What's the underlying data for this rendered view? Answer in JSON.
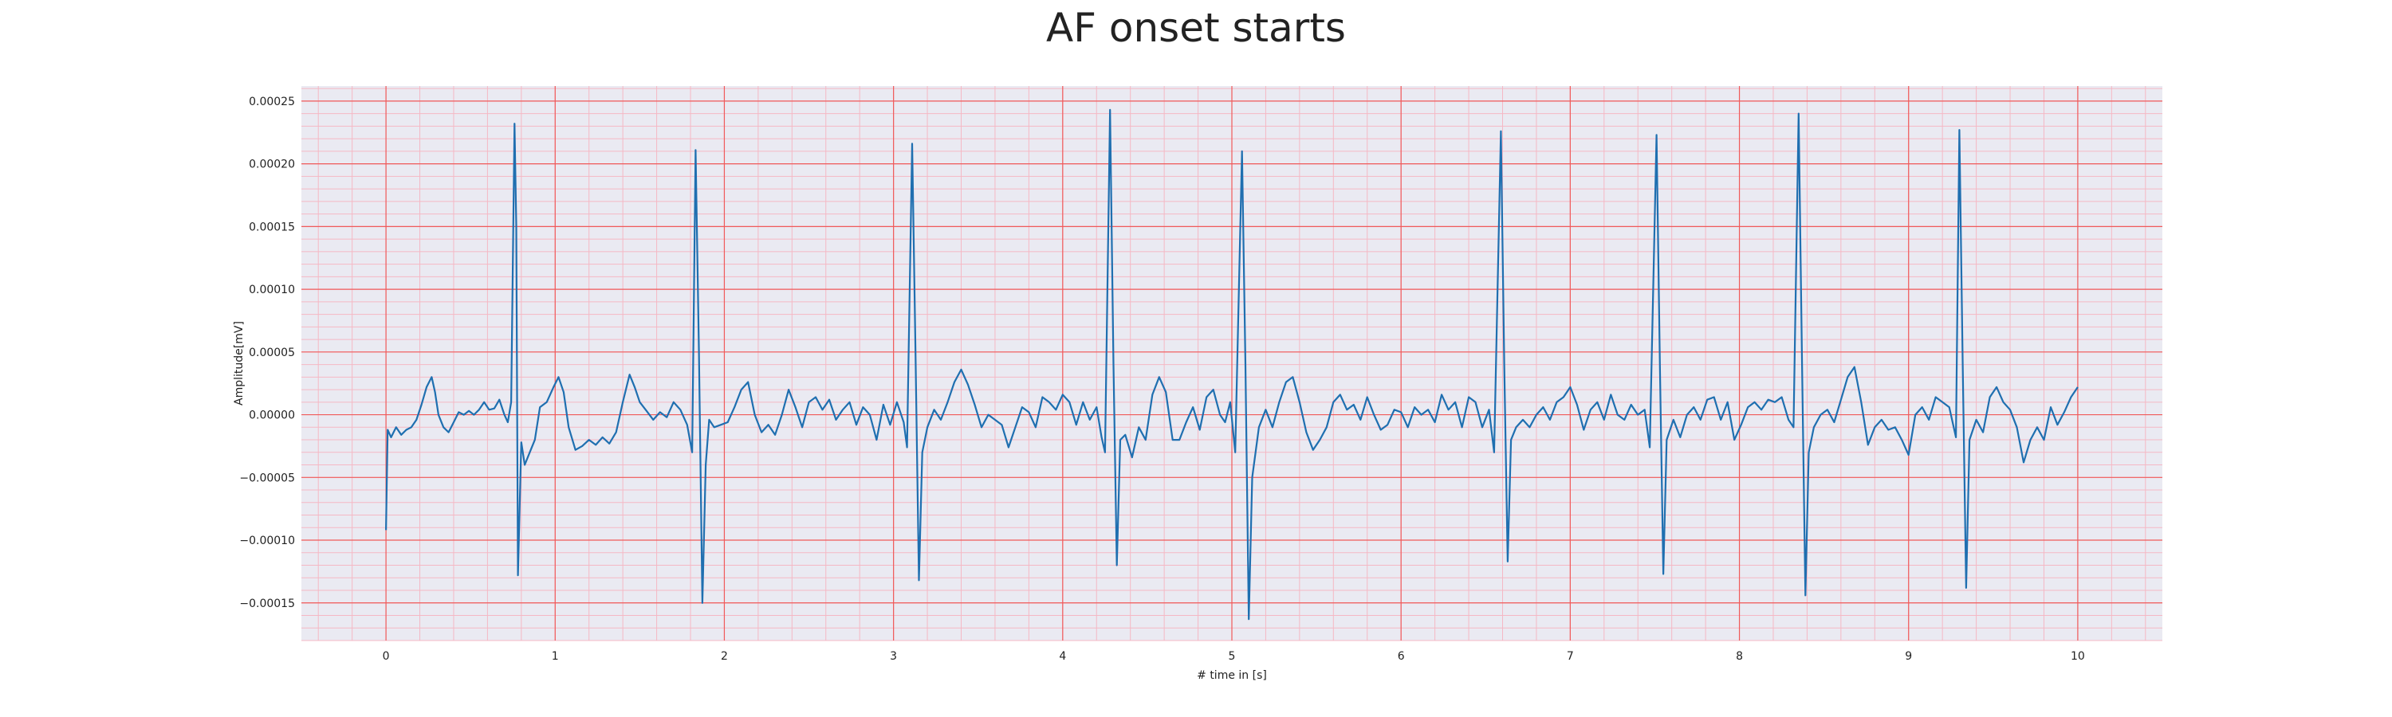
{
  "chart_data": {
    "type": "line",
    "title": "AF onset starts",
    "xlabel": "# time in [s]",
    "ylabel": "Amplitude[mV]",
    "xlim": [
      -0.5,
      10.5
    ],
    "ylim": [
      -0.00018,
      0.000262
    ],
    "x_ticks": [
      0,
      1,
      2,
      3,
      4,
      5,
      6,
      7,
      8,
      9,
      10
    ],
    "x_tick_labels": [
      "0",
      "1",
      "2",
      "3",
      "4",
      "5",
      "6",
      "7",
      "8",
      "9",
      "10"
    ],
    "y_ticks": [
      -0.00015,
      -0.0001,
      -5e-05,
      0,
      5e-05,
      0.0001,
      0.00015,
      0.0002,
      0.00025
    ],
    "y_tick_labels": [
      "−0.00015",
      "−0.00010",
      "−0.00005",
      "0.00000",
      "0.00005",
      "0.00010",
      "0.00015",
      "0.00020",
      "0.00025"
    ],
    "grid": true,
    "minor_grid": true,
    "colors": {
      "line": "#1f6fb0",
      "major_grid": "#f05a5a",
      "minor_grid": "#f5b8c4",
      "background": "#eaeaf2"
    },
    "series": [
      {
        "values": [
          [
            0.0,
            -9.2e-05
          ],
          [
            0.01,
            -1.2e-05
          ],
          [
            0.03,
            -1.8e-05
          ],
          [
            0.06,
            -1e-05
          ],
          [
            0.09,
            -1.6e-05
          ],
          [
            0.12,
            -1.2e-05
          ],
          [
            0.15,
            -1e-05
          ],
          [
            0.18,
            -4e-06
          ],
          [
            0.21,
            8e-06
          ],
          [
            0.24,
            2.2e-05
          ],
          [
            0.27,
            3e-05
          ],
          [
            0.29,
            1.8e-05
          ],
          [
            0.31,
            0.0
          ],
          [
            0.34,
            -1e-05
          ],
          [
            0.37,
            -1.4e-05
          ],
          [
            0.4,
            -6e-06
          ],
          [
            0.43,
            2e-06
          ],
          [
            0.46,
            0.0
          ],
          [
            0.49,
            3e-06
          ],
          [
            0.52,
            0.0
          ],
          [
            0.55,
            4e-06
          ],
          [
            0.58,
            1e-05
          ],
          [
            0.61,
            4e-06
          ],
          [
            0.64,
            5e-06
          ],
          [
            0.67,
            1.2e-05
          ],
          [
            0.7,
            0.0
          ],
          [
            0.72,
            -6e-06
          ],
          [
            0.74,
            1e-05
          ],
          [
            0.76,
            0.000232
          ],
          [
            0.77,
            0.00015
          ],
          [
            0.78,
            -0.000128
          ],
          [
            0.8,
            -2.2e-05
          ],
          [
            0.82,
            -4e-05
          ],
          [
            0.85,
            -3e-05
          ],
          [
            0.88,
            -2e-05
          ],
          [
            0.91,
            6e-06
          ],
          [
            0.95,
            1e-05
          ],
          [
            0.99,
            2.2e-05
          ],
          [
            1.02,
            3e-05
          ],
          [
            1.05,
            1.8e-05
          ],
          [
            1.08,
            -1e-05
          ],
          [
            1.12,
            -2.8e-05
          ],
          [
            1.16,
            -2.5e-05
          ],
          [
            1.2,
            -2e-05
          ],
          [
            1.24,
            -2.4e-05
          ],
          [
            1.28,
            -1.8e-05
          ],
          [
            1.32,
            -2.3e-05
          ],
          [
            1.36,
            -1.4e-05
          ],
          [
            1.4,
            1e-05
          ],
          [
            1.44,
            3.2e-05
          ],
          [
            1.47,
            2.2e-05
          ],
          [
            1.5,
            1e-05
          ],
          [
            1.54,
            3e-06
          ],
          [
            1.58,
            -4e-06
          ],
          [
            1.62,
            2e-06
          ],
          [
            1.66,
            -2e-06
          ],
          [
            1.7,
            1e-05
          ],
          [
            1.74,
            4e-06
          ],
          [
            1.78,
            -8e-06
          ],
          [
            1.81,
            -3e-05
          ],
          [
            1.83,
            0.000211
          ],
          [
            1.85,
            5e-05
          ],
          [
            1.87,
            -0.00015
          ],
          [
            1.89,
            -4e-05
          ],
          [
            1.91,
            -4e-06
          ],
          [
            1.94,
            -1e-05
          ],
          [
            1.98,
            -8e-06
          ],
          [
            2.02,
            -6e-06
          ],
          [
            2.06,
            6e-06
          ],
          [
            2.1,
            2e-05
          ],
          [
            2.14,
            2.6e-05
          ],
          [
            2.18,
            0.0
          ],
          [
            2.22,
            -1.4e-05
          ],
          [
            2.26,
            -8e-06
          ],
          [
            2.3,
            -1.6e-05
          ],
          [
            2.34,
            0.0
          ],
          [
            2.38,
            2e-05
          ],
          [
            2.42,
            6e-06
          ],
          [
            2.46,
            -1e-05
          ],
          [
            2.5,
            1e-05
          ],
          [
            2.54,
            1.4e-05
          ],
          [
            2.58,
            4e-06
          ],
          [
            2.62,
            1.2e-05
          ],
          [
            2.66,
            -4e-06
          ],
          [
            2.7,
            4e-06
          ],
          [
            2.74,
            1e-05
          ],
          [
            2.78,
            -8e-06
          ],
          [
            2.82,
            6e-06
          ],
          [
            2.86,
            0.0
          ],
          [
            2.9,
            -2e-05
          ],
          [
            2.94,
            8e-06
          ],
          [
            2.98,
            -8e-06
          ],
          [
            3.02,
            1e-05
          ],
          [
            3.06,
            -6e-06
          ],
          [
            3.08,
            -2.6e-05
          ],
          [
            3.11,
            0.000216
          ],
          [
            3.13,
            5e-05
          ],
          [
            3.15,
            -0.000132
          ],
          [
            3.17,
            -3e-05
          ],
          [
            3.2,
            -1e-05
          ],
          [
            3.24,
            4e-06
          ],
          [
            3.28,
            -4e-06
          ],
          [
            3.32,
            1e-05
          ],
          [
            3.36,
            2.6e-05
          ],
          [
            3.4,
            3.6e-05
          ],
          [
            3.44,
            2.4e-05
          ],
          [
            3.48,
            8e-06
          ],
          [
            3.52,
            -1e-05
          ],
          [
            3.56,
            0.0
          ],
          [
            3.6,
            -4e-06
          ],
          [
            3.64,
            -8e-06
          ],
          [
            3.68,
            -2.6e-05
          ],
          [
            3.72,
            -1e-05
          ],
          [
            3.76,
            6e-06
          ],
          [
            3.8,
            2e-06
          ],
          [
            3.84,
            -1e-05
          ],
          [
            3.88,
            1.4e-05
          ],
          [
            3.92,
            1e-05
          ],
          [
            3.96,
            4e-06
          ],
          [
            4.0,
            1.6e-05
          ],
          [
            4.04,
            1e-05
          ],
          [
            4.08,
            -8e-06
          ],
          [
            4.12,
            1e-05
          ],
          [
            4.16,
            -4e-06
          ],
          [
            4.2,
            6e-06
          ],
          [
            4.23,
            -1.8e-05
          ],
          [
            4.25,
            -3e-05
          ],
          [
            4.28,
            0.000243
          ],
          [
            4.3,
            4e-05
          ],
          [
            4.32,
            -0.00012
          ],
          [
            4.34,
            -2e-05
          ],
          [
            4.37,
            -1.6e-05
          ],
          [
            4.41,
            -3.4e-05
          ],
          [
            4.45,
            -1e-05
          ],
          [
            4.49,
            -2e-05
          ],
          [
            4.53,
            1.6e-05
          ],
          [
            4.57,
            3e-05
          ],
          [
            4.61,
            1.8e-05
          ],
          [
            4.65,
            -2e-05
          ],
          [
            4.69,
            -2e-05
          ],
          [
            4.73,
            -6e-06
          ],
          [
            4.77,
            6e-06
          ],
          [
            4.81,
            -1.2e-05
          ],
          [
            4.85,
            1.4e-05
          ],
          [
            4.89,
            2e-05
          ],
          [
            4.93,
            0.0
          ],
          [
            4.96,
            -6e-06
          ],
          [
            4.99,
            1e-05
          ],
          [
            5.02,
            -3e-05
          ],
          [
            5.06,
            0.00021
          ],
          [
            5.08,
            4e-05
          ],
          [
            5.1,
            -0.000163
          ],
          [
            5.12,
            -5e-05
          ],
          [
            5.16,
            -1e-05
          ],
          [
            5.2,
            4e-06
          ],
          [
            5.24,
            -1e-05
          ],
          [
            5.28,
            1e-05
          ],
          [
            5.32,
            2.6e-05
          ],
          [
            5.36,
            3e-05
          ],
          [
            5.4,
            1e-05
          ],
          [
            5.44,
            -1.4e-05
          ],
          [
            5.48,
            -2.8e-05
          ],
          [
            5.52,
            -2e-05
          ],
          [
            5.56,
            -1e-05
          ],
          [
            5.6,
            1e-05
          ],
          [
            5.64,
            1.6e-05
          ],
          [
            5.68,
            4e-06
          ],
          [
            5.72,
            8e-06
          ],
          [
            5.76,
            -4e-06
          ],
          [
            5.8,
            1.4e-05
          ],
          [
            5.84,
            0.0
          ],
          [
            5.88,
            -1.2e-05
          ],
          [
            5.92,
            -8e-06
          ],
          [
            5.96,
            4e-06
          ],
          [
            6.0,
            2e-06
          ],
          [
            6.04,
            -1e-05
          ],
          [
            6.08,
            6e-06
          ],
          [
            6.12,
            0.0
          ],
          [
            6.16,
            4e-06
          ],
          [
            6.2,
            -6e-06
          ],
          [
            6.24,
            1.6e-05
          ],
          [
            6.28,
            4e-06
          ],
          [
            6.32,
            1e-05
          ],
          [
            6.36,
            -1e-05
          ],
          [
            6.4,
            1.4e-05
          ],
          [
            6.44,
            1e-05
          ],
          [
            6.48,
            -1e-05
          ],
          [
            6.52,
            4e-06
          ],
          [
            6.55,
            -3e-05
          ],
          [
            6.59,
            0.000226
          ],
          [
            6.61,
            4e-05
          ],
          [
            6.63,
            -0.000117
          ],
          [
            6.65,
            -2e-05
          ],
          [
            6.68,
            -1e-05
          ],
          [
            6.72,
            -4e-06
          ],
          [
            6.76,
            -1e-05
          ],
          [
            6.8,
            0.0
          ],
          [
            6.84,
            6e-06
          ],
          [
            6.88,
            -4e-06
          ],
          [
            6.92,
            1e-05
          ],
          [
            6.96,
            1.4e-05
          ],
          [
            7.0,
            2.2e-05
          ],
          [
            7.04,
            8e-06
          ],
          [
            7.08,
            -1.2e-05
          ],
          [
            7.12,
            4e-06
          ],
          [
            7.16,
            1e-05
          ],
          [
            7.2,
            -4e-06
          ],
          [
            7.24,
            1.6e-05
          ],
          [
            7.28,
            0.0
          ],
          [
            7.32,
            -4e-06
          ],
          [
            7.36,
            8e-06
          ],
          [
            7.4,
            0.0
          ],
          [
            7.44,
            4e-06
          ],
          [
            7.47,
            -2.6e-05
          ],
          [
            7.51,
            0.000223
          ],
          [
            7.53,
            4e-05
          ],
          [
            7.55,
            -0.000127
          ],
          [
            7.57,
            -2e-05
          ],
          [
            7.61,
            -4e-06
          ],
          [
            7.65,
            -1.8e-05
          ],
          [
            7.69,
            0.0
          ],
          [
            7.73,
            6e-06
          ],
          [
            7.77,
            -4e-06
          ],
          [
            7.81,
            1.2e-05
          ],
          [
            7.85,
            1.4e-05
          ],
          [
            7.89,
            -4e-06
          ],
          [
            7.93,
            1e-05
          ],
          [
            7.97,
            -2e-05
          ],
          [
            8.01,
            -8e-06
          ],
          [
            8.05,
            6e-06
          ],
          [
            8.09,
            1e-05
          ],
          [
            8.13,
            4e-06
          ],
          [
            8.17,
            1.2e-05
          ],
          [
            8.21,
            1e-05
          ],
          [
            8.25,
            1.4e-05
          ],
          [
            8.29,
            -4e-06
          ],
          [
            8.32,
            -1e-05
          ],
          [
            8.35,
            0.00024
          ],
          [
            8.37,
            4e-05
          ],
          [
            8.39,
            -0.000144
          ],
          [
            8.41,
            -3e-05
          ],
          [
            8.44,
            -1e-05
          ],
          [
            8.48,
            0.0
          ],
          [
            8.52,
            4e-06
          ],
          [
            8.56,
            -6e-06
          ],
          [
            8.6,
            1.2e-05
          ],
          [
            8.64,
            3e-05
          ],
          [
            8.68,
            3.8e-05
          ],
          [
            8.72,
            1e-05
          ],
          [
            8.76,
            -2.4e-05
          ],
          [
            8.8,
            -1e-05
          ],
          [
            8.84,
            -4e-06
          ],
          [
            8.88,
            -1.2e-05
          ],
          [
            8.92,
            -1e-05
          ],
          [
            8.96,
            -2e-05
          ],
          [
            9.0,
            -3.2e-05
          ],
          [
            9.04,
            0.0
          ],
          [
            9.08,
            6e-06
          ],
          [
            9.12,
            -4e-06
          ],
          [
            9.16,
            1.4e-05
          ],
          [
            9.2,
            1e-05
          ],
          [
            9.24,
            6e-06
          ],
          [
            9.28,
            -1.8e-05
          ],
          [
            9.3,
            0.000227
          ],
          [
            9.32,
            4e-05
          ],
          [
            9.34,
            -0.000138
          ],
          [
            9.36,
            -2e-05
          ],
          [
            9.4,
            -4e-06
          ],
          [
            9.44,
            -1.4e-05
          ],
          [
            9.48,
            1.4e-05
          ],
          [
            9.52,
            2.2e-05
          ],
          [
            9.56,
            1e-05
          ],
          [
            9.6,
            4e-06
          ],
          [
            9.64,
            -1e-05
          ],
          [
            9.68,
            -3.8e-05
          ],
          [
            9.72,
            -2e-05
          ],
          [
            9.76,
            -1e-05
          ],
          [
            9.8,
            -2e-05
          ],
          [
            9.84,
            6e-06
          ],
          [
            9.88,
            -8e-06
          ],
          [
            9.92,
            2e-06
          ],
          [
            9.96,
            1.4e-05
          ],
          [
            10.0,
            2.2e-05
          ]
        ]
      }
    ]
  }
}
